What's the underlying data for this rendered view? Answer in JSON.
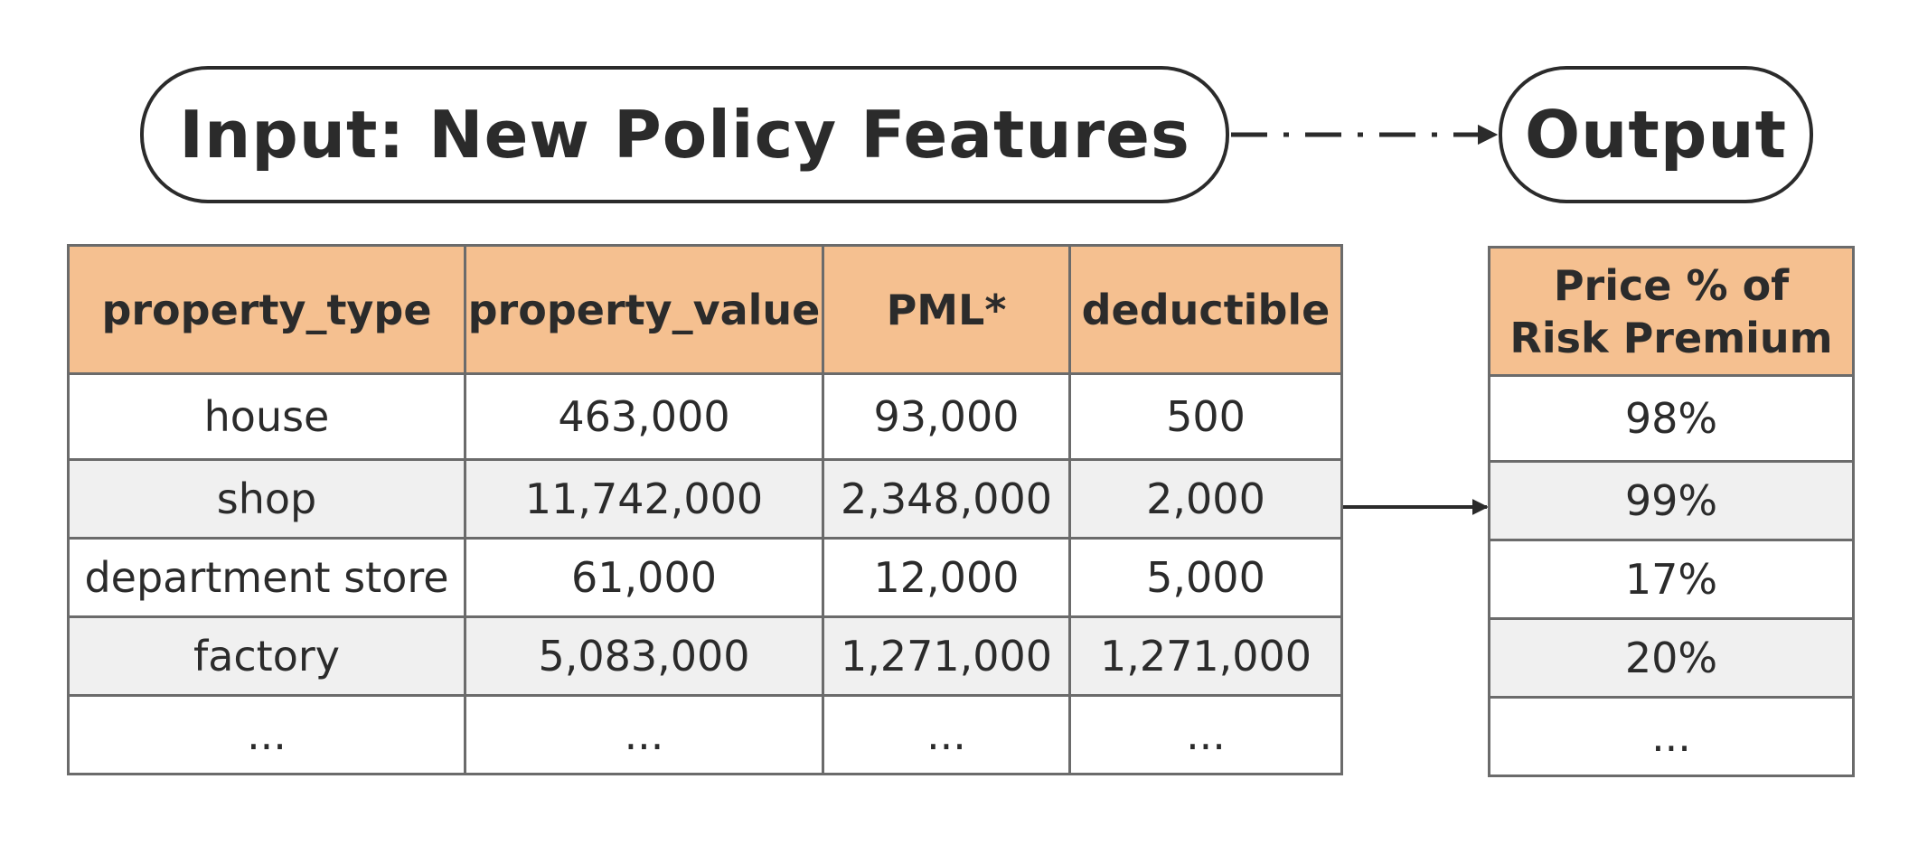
{
  "header": {
    "input_title": "Input: New Policy Features",
    "output_title": "Output"
  },
  "input_table": {
    "columns": [
      "property_type",
      "property_value",
      "PML*",
      "deductible"
    ],
    "rows": [
      [
        "house",
        "463,000",
        "93,000",
        "500"
      ],
      [
        "shop",
        "11,742,000",
        "2,348,000",
        "2,000"
      ],
      [
        "department store",
        "61,000",
        "12,000",
        "5,000"
      ],
      [
        "factory",
        "5,083,000",
        "1,271,000",
        "1,271,000"
      ],
      [
        "...",
        "...",
        "...",
        "..."
      ]
    ]
  },
  "output_table": {
    "header_line1": "Price % of",
    "header_line2": "Risk Premium",
    "rows": [
      "98%",
      "99%",
      "17%",
      "20%",
      "..."
    ]
  },
  "colors": {
    "header_fill": "#f5c090",
    "stripe_fill": "#f0f0f0",
    "stroke": "#2b2b2b",
    "grid_line": "#6b6b6b"
  }
}
